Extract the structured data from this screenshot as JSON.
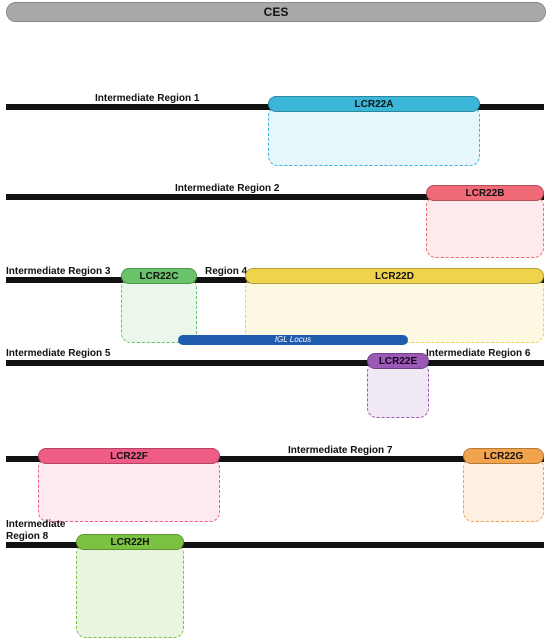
{
  "ces": {
    "label": "CES"
  },
  "colors": {
    "ces_fill": "#a9a9a9",
    "lcr22a": "#3bb6d6",
    "lcr22b": "#f06a78",
    "lcr22c": "#6ac36a",
    "lcr22d": "#f0d34c",
    "lcr22e": "#9b59b6",
    "lcr22f": "#ef5c85",
    "lcr22g": "#f2a34e",
    "lcr22h": "#7cc242",
    "igl": "#1f5cad"
  },
  "regions": {
    "ir1": "Intermediate Region 1",
    "ir2": "Intermediate Region 2",
    "ir3": "Intermediate Region 3",
    "ir4": "Region 4",
    "ir5": "Intermediate Region 5",
    "ir6": "Intermediate Region 6",
    "ir7": "Intermediate Region 7",
    "ir8_line1": "Intermediate",
    "ir8_line2": "Region 8"
  },
  "lcrs": {
    "a": "LCR22A",
    "b": "LCR22B",
    "c": "LCR22C",
    "d": "LCR22D",
    "e": "LCR22E",
    "f": "LCR22F",
    "g": "LCR22G",
    "h": "LCR22H"
  },
  "igl": {
    "label": "IGL Locus"
  }
}
